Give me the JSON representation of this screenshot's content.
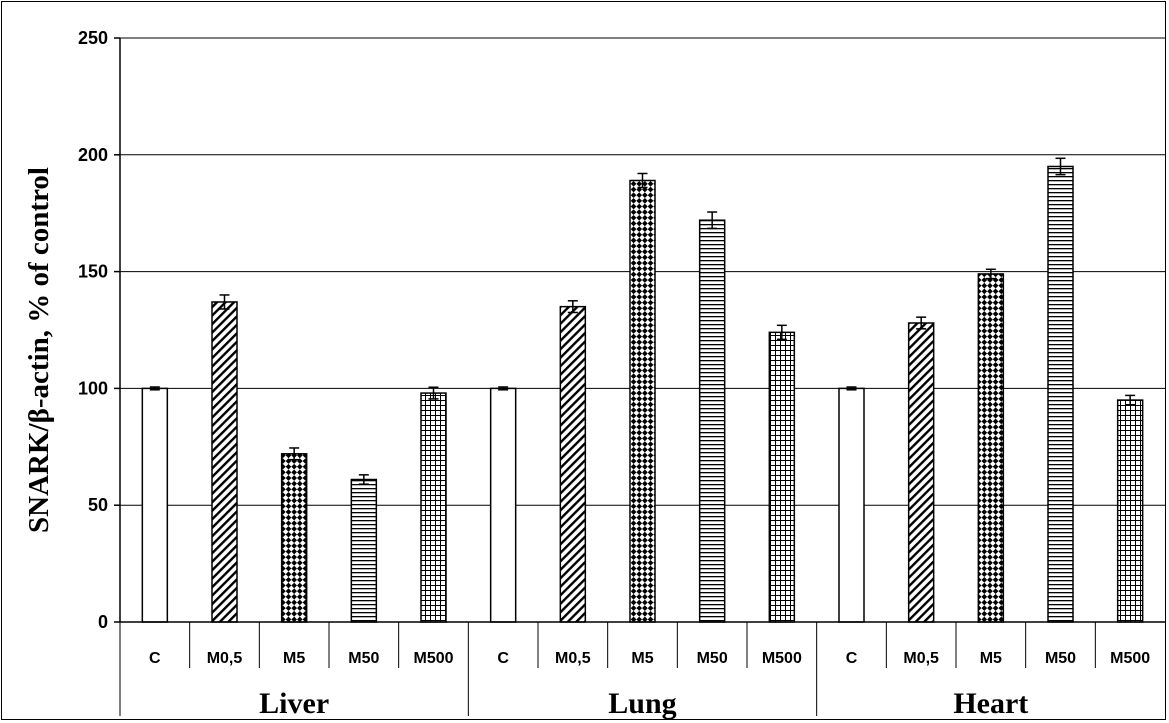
{
  "chart_data": {
    "type": "bar",
    "ylabel": "SNARK/β-actin, % of control",
    "ylim": [
      0,
      250
    ],
    "yticks": [
      0,
      50,
      100,
      150,
      200,
      250
    ],
    "grid": "horizontal",
    "groups": [
      "Liver",
      "Lung",
      "Heart"
    ],
    "categories": [
      "C",
      "M0,5",
      "M5",
      "M50",
      "M500"
    ],
    "patterns": [
      "none",
      "diagonal-hatch",
      "diamond-checker",
      "horizontal-lines",
      "grid"
    ],
    "values": {
      "Liver": [
        100,
        137,
        72,
        61,
        98
      ],
      "Lung": [
        100,
        135,
        189,
        172,
        124
      ],
      "Heart": [
        100,
        128,
        149,
        195,
        95
      ]
    },
    "errors": {
      "Liver": [
        0.6,
        3,
        2.5,
        2,
        2.5
      ],
      "Lung": [
        0.6,
        2.5,
        3,
        3.5,
        3
      ],
      "Heart": [
        0.6,
        2.5,
        2,
        3.5,
        2
      ]
    }
  }
}
